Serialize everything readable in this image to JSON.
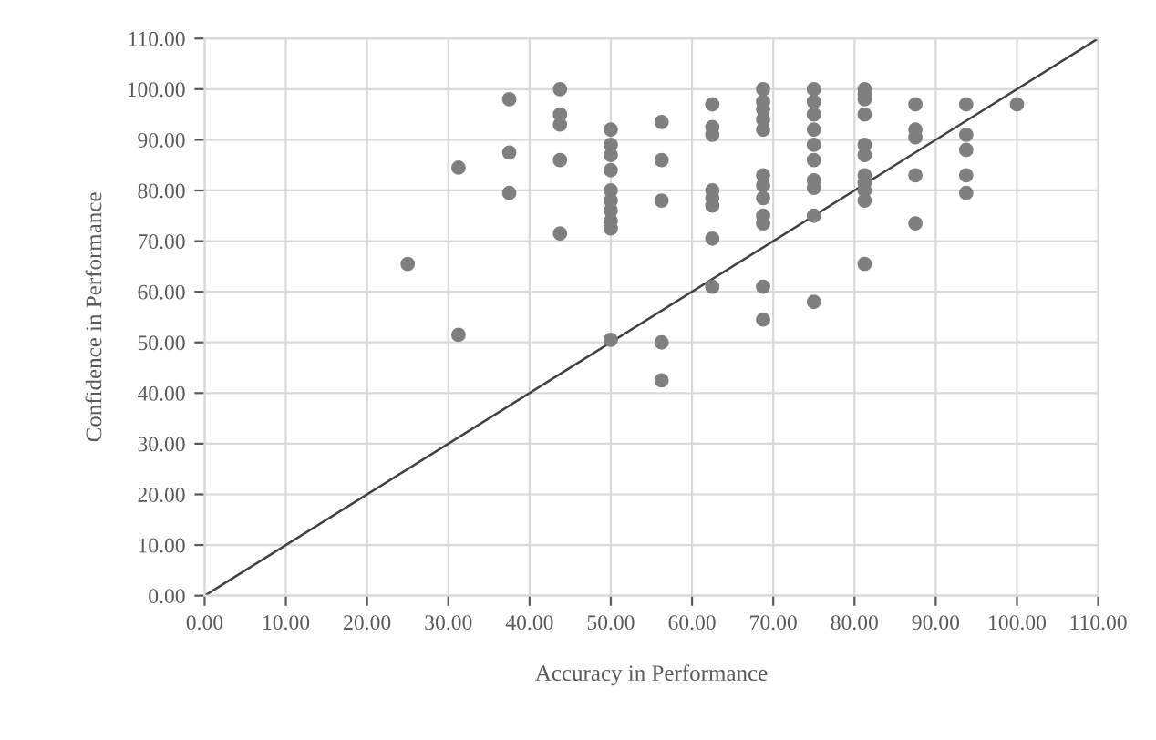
{
  "chart_data": {
    "type": "scatter",
    "xlabel": "Accuracy in Performance",
    "ylabel": "Confidence in Performance",
    "xlim": [
      0,
      110
    ],
    "ylim": [
      0,
      110
    ],
    "xticks": [
      {
        "value": 0,
        "label": "0.00"
      },
      {
        "value": 10,
        "label": "10.00"
      },
      {
        "value": 20,
        "label": "20.00"
      },
      {
        "value": 30,
        "label": "30.00"
      },
      {
        "value": 40,
        "label": "40.00"
      },
      {
        "value": 50,
        "label": "50.00"
      },
      {
        "value": 60,
        "label": "60.00"
      },
      {
        "value": 70,
        "label": "70.00"
      },
      {
        "value": 80,
        "label": "80.00"
      },
      {
        "value": 90,
        "label": "90.00"
      },
      {
        "value": 100,
        "label": "100.00"
      },
      {
        "value": 110,
        "label": "110.00"
      }
    ],
    "yticks": [
      {
        "value": 0,
        "label": "0.00"
      },
      {
        "value": 10,
        "label": "10.00"
      },
      {
        "value": 20,
        "label": "20.00"
      },
      {
        "value": 30,
        "label": "30.00"
      },
      {
        "value": 40,
        "label": "40.00"
      },
      {
        "value": 50,
        "label": "50.00"
      },
      {
        "value": 60,
        "label": "60.00"
      },
      {
        "value": 70,
        "label": "70.00"
      },
      {
        "value": 80,
        "label": "80.00"
      },
      {
        "value": 90,
        "label": "90.00"
      },
      {
        "value": 100,
        "label": "100.00"
      },
      {
        "value": 110,
        "label": "110.00"
      }
    ],
    "grid": true,
    "marker": "circle",
    "series": [
      {
        "color": "#7f7f7f",
        "x": [
          25,
          31.25,
          31.25,
          37.5,
          37.5,
          37.5,
          43.75,
          43.75,
          43.75,
          43.75,
          43.75,
          50,
          50,
          50,
          50,
          50,
          50,
          50,
          50,
          50,
          50,
          56.25,
          56.25,
          56.25,
          56.25,
          56.25,
          62.5,
          62.5,
          62.5,
          62.5,
          62.5,
          62.5,
          62.5,
          62.5,
          68.75,
          68.75,
          68.75,
          68.75,
          68.75,
          68.75,
          68.75,
          68.75,
          68.75,
          68.75,
          68.75,
          68.75,
          75,
          75,
          75,
          75,
          75,
          75,
          75,
          75,
          75,
          75,
          81.25,
          81.25,
          81.25,
          81.25,
          81.25,
          81.25,
          81.25,
          81.25,
          81.25,
          81.25,
          81.25,
          87.5,
          87.5,
          87.5,
          87.5,
          87.5,
          93.75,
          93.75,
          93.75,
          93.75,
          93.75,
          100
        ],
        "values": [
          65.5,
          84.5,
          51.5,
          98,
          87.5,
          79.5,
          100,
          95,
          93,
          86,
          71.5,
          92,
          89,
          87,
          84,
          80,
          78,
          76,
          74,
          72.5,
          50.5,
          93.5,
          86,
          78,
          50,
          42.5,
          97,
          92.5,
          91,
          80,
          78.5,
          77,
          70.5,
          61,
          100,
          97.5,
          96,
          94,
          92,
          83,
          81,
          78.5,
          75,
          73.5,
          61,
          54.5,
          100,
          97.5,
          95,
          92,
          89,
          86,
          82,
          80.5,
          75,
          58,
          100,
          99,
          98,
          95,
          89,
          87,
          83,
          81.5,
          80,
          78,
          65.5,
          97,
          92,
          90.5,
          83,
          73.5,
          97,
          91,
          88,
          83,
          79.5,
          97
        ]
      },
      {
        "type": "line",
        "color": "#404040",
        "marker": "none",
        "x": [
          0,
          110
        ],
        "values": [
          0,
          110
        ]
      }
    ]
  }
}
